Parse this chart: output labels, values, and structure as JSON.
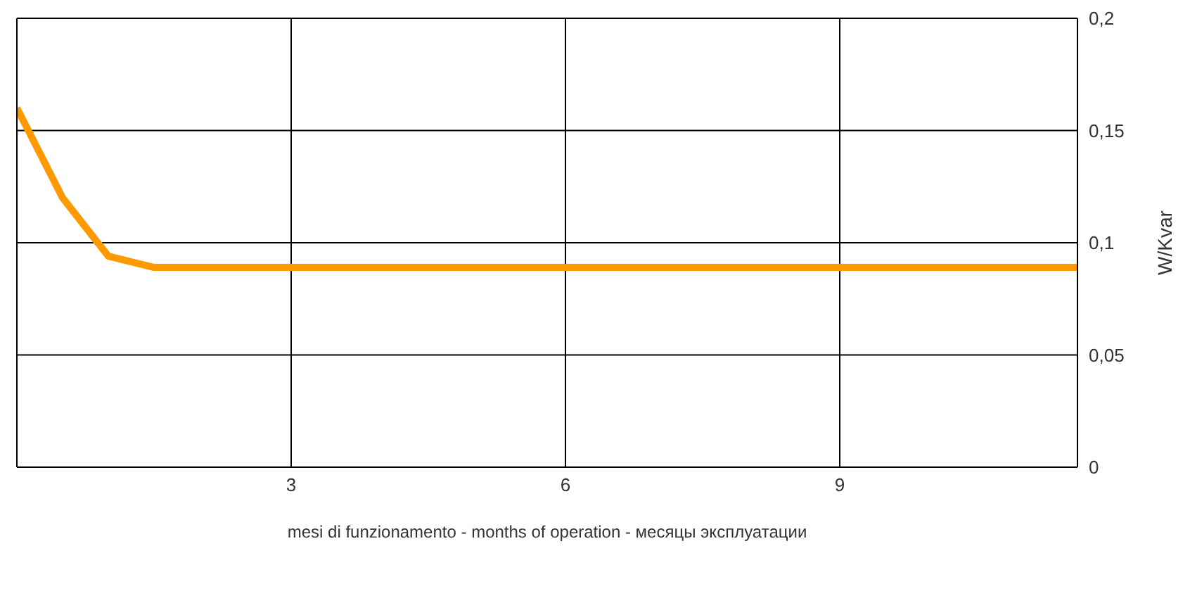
{
  "chart_data": {
    "type": "line",
    "xlabel": "mesi di funzionamento - months of operation - месяцы эксплуатации",
    "ylabel": "W/Kvar",
    "x": [
      0,
      0.5,
      1,
      1.5,
      11.6
    ],
    "series": [
      {
        "color": "#ff9900",
        "values": [
          0.16,
          0.12,
          0.094,
          0.089,
          0.089
        ]
      }
    ],
    "xlim": [
      0,
      11.6
    ],
    "xticks": [
      3,
      6,
      9
    ],
    "ylim": [
      0,
      0.2
    ],
    "yticks": [
      {
        "value": 0,
        "label": "0"
      },
      {
        "value": 0.05,
        "label": "0,05"
      },
      {
        "value": 0.1,
        "label": "0,1"
      },
      {
        "value": 0.15,
        "label": "0,15"
      },
      {
        "value": 0.2,
        "label": "0,2"
      }
    ],
    "grid": true,
    "legend": false,
    "marker": "none",
    "line_style": "solid"
  }
}
